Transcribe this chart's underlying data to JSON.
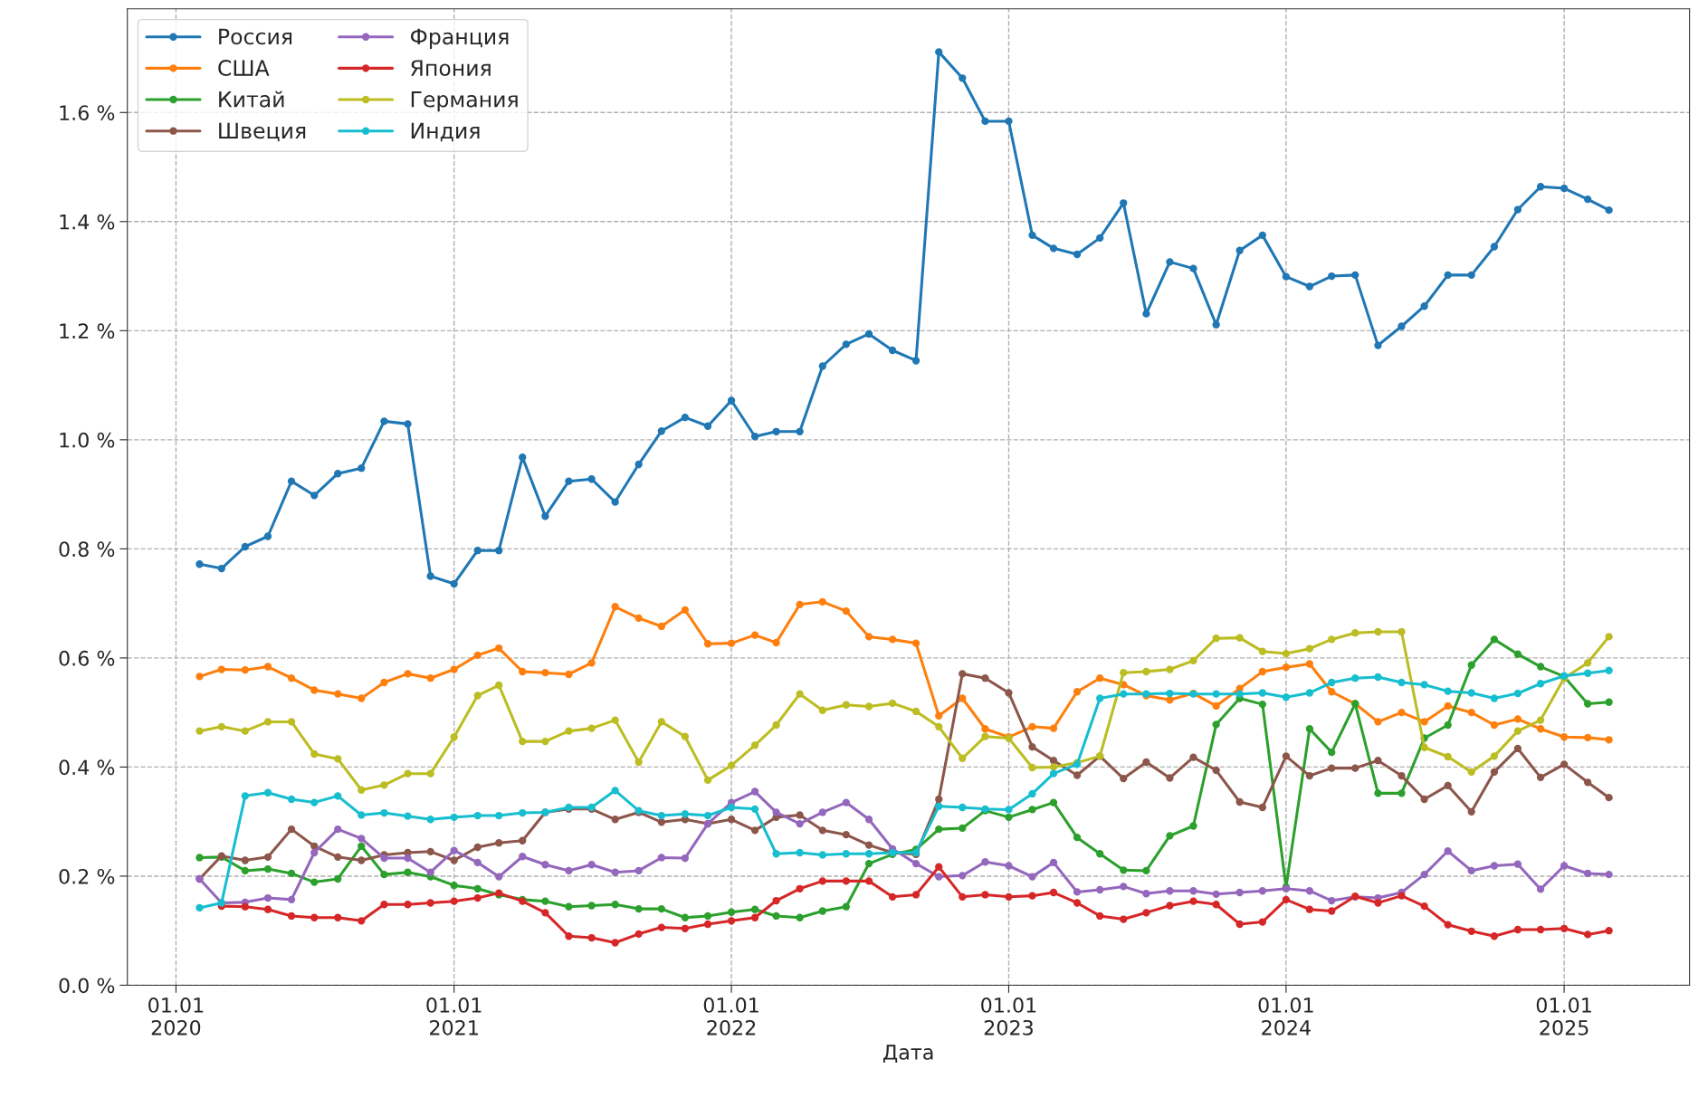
{
  "chart_data": {
    "type": "line",
    "xlabel": "Дата",
    "grid": true,
    "legend": "top left",
    "marker": "circle",
    "line_style": "solid",
    "x": [
      "2020-02",
      "2020-03",
      "2020-04",
      "2020-05",
      "2020-06",
      "2020-07",
      "2020-08",
      "2020-09",
      "2020-10",
      "2020-11",
      "2020-12",
      "2021-01",
      "2021-02",
      "2021-03",
      "2021-04",
      "2021-05",
      "2021-06",
      "2021-07",
      "2021-08",
      "2021-09",
      "2021-10",
      "2021-11",
      "2021-12",
      "2022-01",
      "2022-02",
      "2022-03",
      "2022-04",
      "2022-05",
      "2022-06",
      "2022-07",
      "2022-08",
      "2022-09",
      "2022-10",
      "2022-11",
      "2022-12",
      "2023-01",
      "2023-02",
      "2023-03",
      "2023-04",
      "2023-05",
      "2023-06",
      "2023-07",
      "2023-08",
      "2023-09",
      "2023-10",
      "2023-11",
      "2023-12",
      "2024-01",
      "2024-02",
      "2024-03",
      "2024-04",
      "2024-05",
      "2024-06",
      "2024-07",
      "2024-08",
      "2024-09",
      "2024-10",
      "2024-11",
      "2024-12",
      "2025-01",
      "2025-02",
      "2025-03"
    ],
    "xlim": [
      "2019-10-29",
      "2025-06-15"
    ],
    "xticks": [
      {
        "value": "2020-01-01",
        "label": "01.01\n2020"
      },
      {
        "value": "2021-01-01",
        "label": "01.01\n2021"
      },
      {
        "value": "2022-01-01",
        "label": "01.01\n2022"
      },
      {
        "value": "2023-01-01",
        "label": "01.01\n2023"
      },
      {
        "value": "2024-01-01",
        "label": "01.01\n2024"
      },
      {
        "value": "2025-01-01",
        "label": "01.01\n2025"
      }
    ],
    "ylim": [
      0,
      1.79
    ],
    "yticks": [
      {
        "value": 0,
        "label": "0.0 %"
      },
      {
        "value": 0.2,
        "label": "0.2 %"
      },
      {
        "value": 0.4,
        "label": "0.4 %"
      },
      {
        "value": 0.6,
        "label": "0.6 %"
      },
      {
        "value": 0.8,
        "label": "0.8 %"
      },
      {
        "value": 1.0,
        "label": "1.0 %"
      },
      {
        "value": 1.2,
        "label": "1.2 %"
      },
      {
        "value": 1.4,
        "label": "1.4 %"
      },
      {
        "value": 1.6,
        "label": "1.6 %"
      }
    ],
    "series": [
      {
        "name": "Россия",
        "color": "#1f77b4",
        "values": [
          0.772,
          0.764,
          0.804,
          0.823,
          0.924,
          0.898,
          0.938,
          0.948,
          1.034,
          1.029,
          0.75,
          0.736,
          0.797,
          0.797,
          0.968,
          0.86,
          0.924,
          0.928,
          0.886,
          0.955,
          1.016,
          1.041,
          1.025,
          1.072,
          1.006,
          1.015,
          1.015,
          1.135,
          1.175,
          1.194,
          1.164,
          1.145,
          1.711,
          1.663,
          1.584,
          1.584,
          1.375,
          1.351,
          1.34,
          1.37,
          1.434,
          1.231,
          1.326,
          1.314,
          1.211,
          1.347,
          1.375,
          1.299,
          1.281,
          1.3,
          1.302,
          1.173,
          1.208,
          1.245,
          1.302,
          1.302,
          1.354,
          1.422,
          1.464,
          1.461,
          1.441,
          1.421
        ]
      },
      {
        "name": "США",
        "color": "#ff7f0e",
        "values": [
          0.566,
          0.579,
          0.578,
          0.584,
          0.563,
          0.541,
          0.534,
          0.526,
          0.555,
          0.571,
          0.563,
          0.579,
          0.605,
          0.618,
          0.575,
          0.573,
          0.57,
          0.591,
          0.694,
          0.673,
          0.658,
          0.688,
          0.626,
          0.627,
          0.642,
          0.628,
          0.698,
          0.703,
          0.686,
          0.639,
          0.634,
          0.627,
          0.494,
          0.526,
          0.47,
          0.455,
          0.474,
          0.471,
          0.538,
          0.563,
          0.551,
          0.531,
          0.523,
          0.535,
          0.512,
          0.544,
          0.575,
          0.583,
          0.589,
          0.538,
          0.516,
          0.483,
          0.5,
          0.483,
          0.512,
          0.5,
          0.477,
          0.488,
          0.47,
          0.455,
          0.454,
          0.45
        ]
      },
      {
        "name": "Китай",
        "color": "#2ca02c",
        "values": [
          0.234,
          0.235,
          0.21,
          0.213,
          0.205,
          0.189,
          0.195,
          0.255,
          0.203,
          0.207,
          0.199,
          0.183,
          0.177,
          0.166,
          0.157,
          0.154,
          0.144,
          0.146,
          0.148,
          0.14,
          0.14,
          0.124,
          0.127,
          0.134,
          0.139,
          0.127,
          0.124,
          0.136,
          0.144,
          0.223,
          0.24,
          0.249,
          0.286,
          0.288,
          0.32,
          0.308,
          0.322,
          0.335,
          0.271,
          0.241,
          0.211,
          0.21,
          0.274,
          0.292,
          0.478,
          0.526,
          0.515,
          0.18,
          0.47,
          0.427,
          0.516,
          0.352,
          0.352,
          0.453,
          0.477,
          0.587,
          0.634,
          0.607,
          0.584,
          0.566,
          0.516,
          0.519
        ]
      },
      {
        "name": "Швеция",
        "color": "#8c564b",
        "values": [
          0.195,
          0.237,
          0.229,
          0.235,
          0.286,
          0.255,
          0.235,
          0.229,
          0.239,
          0.243,
          0.245,
          0.229,
          0.253,
          0.261,
          0.265,
          0.317,
          0.323,
          0.323,
          0.304,
          0.317,
          0.299,
          0.304,
          0.296,
          0.304,
          0.284,
          0.308,
          0.312,
          0.284,
          0.276,
          0.257,
          0.243,
          0.24,
          0.341,
          0.571,
          0.563,
          0.536,
          0.437,
          0.412,
          0.385,
          0.42,
          0.379,
          0.409,
          0.38,
          0.418,
          0.394,
          0.336,
          0.326,
          0.42,
          0.384,
          0.398,
          0.398,
          0.412,
          0.384,
          0.341,
          0.366,
          0.318,
          0.391,
          0.434,
          0.381,
          0.405,
          0.372,
          0.344
        ]
      },
      {
        "name": "Франция",
        "color": "#9467bd",
        "values": [
          0.195,
          0.151,
          0.152,
          0.16,
          0.157,
          0.243,
          0.286,
          0.269,
          0.233,
          0.233,
          0.207,
          0.247,
          0.225,
          0.199,
          0.236,
          0.221,
          0.21,
          0.221,
          0.207,
          0.21,
          0.234,
          0.233,
          0.296,
          0.335,
          0.355,
          0.317,
          0.296,
          0.317,
          0.335,
          0.304,
          0.25,
          0.223,
          0.199,
          0.201,
          0.226,
          0.219,
          0.199,
          0.225,
          0.171,
          0.175,
          0.181,
          0.168,
          0.173,
          0.173,
          0.167,
          0.17,
          0.173,
          0.177,
          0.173,
          0.155,
          0.162,
          0.16,
          0.17,
          0.203,
          0.246,
          0.21,
          0.219,
          0.222,
          0.176,
          0.219,
          0.205,
          0.203
        ]
      },
      {
        "name": "Япония",
        "color": "#d62728",
        "values": [
          null,
          0.145,
          0.144,
          0.139,
          0.127,
          0.124,
          0.124,
          0.118,
          0.148,
          0.148,
          0.151,
          0.154,
          0.16,
          0.169,
          0.154,
          0.133,
          0.09,
          0.087,
          0.078,
          0.094,
          0.106,
          0.104,
          0.112,
          0.118,
          0.124,
          0.155,
          0.177,
          0.191,
          0.191,
          0.191,
          0.162,
          0.166,
          0.217,
          0.162,
          0.166,
          0.162,
          0.164,
          0.17,
          0.151,
          0.127,
          0.121,
          0.133,
          0.146,
          0.154,
          0.148,
          0.112,
          0.116,
          0.157,
          0.139,
          0.136,
          0.163,
          0.151,
          0.164,
          0.145,
          0.111,
          0.099,
          0.09,
          0.102,
          0.102,
          0.104,
          0.093,
          0.1
        ]
      },
      {
        "name": "Германия",
        "color": "#bcbd22",
        "values": [
          0.466,
          0.474,
          0.466,
          0.483,
          0.483,
          0.424,
          0.415,
          0.358,
          0.367,
          0.388,
          0.388,
          0.455,
          0.531,
          0.55,
          0.447,
          0.447,
          0.466,
          0.471,
          0.486,
          0.409,
          0.483,
          0.456,
          0.376,
          0.403,
          0.44,
          0.477,
          0.534,
          0.504,
          0.514,
          0.511,
          0.517,
          0.502,
          0.474,
          0.416,
          0.456,
          0.453,
          0.399,
          0.4,
          0.408,
          0.42,
          0.573,
          0.575,
          0.579,
          0.595,
          0.636,
          0.637,
          0.612,
          0.608,
          0.617,
          0.634,
          0.646,
          0.648,
          0.648,
          0.436,
          0.419,
          0.391,
          0.42,
          0.466,
          0.486,
          0.563,
          0.591,
          0.639
        ]
      },
      {
        "name": "Индия",
        "color": "#17becf",
        "values": [
          0.142,
          0.151,
          0.347,
          0.353,
          0.341,
          0.335,
          0.347,
          0.312,
          0.316,
          0.31,
          0.304,
          0.308,
          0.311,
          0.311,
          0.316,
          0.317,
          0.326,
          0.326,
          0.357,
          0.32,
          0.311,
          0.314,
          0.311,
          0.326,
          0.323,
          0.241,
          0.243,
          0.239,
          0.241,
          0.241,
          0.243,
          0.243,
          0.328,
          0.326,
          0.323,
          0.322,
          0.351,
          0.388,
          0.405,
          0.526,
          0.534,
          0.534,
          0.535,
          0.534,
          0.534,
          0.534,
          0.536,
          0.528,
          0.536,
          0.555,
          0.563,
          0.565,
          0.555,
          0.551,
          0.539,
          0.536,
          0.526,
          0.535,
          0.553,
          0.567,
          0.572,
          0.577
        ]
      }
    ]
  }
}
